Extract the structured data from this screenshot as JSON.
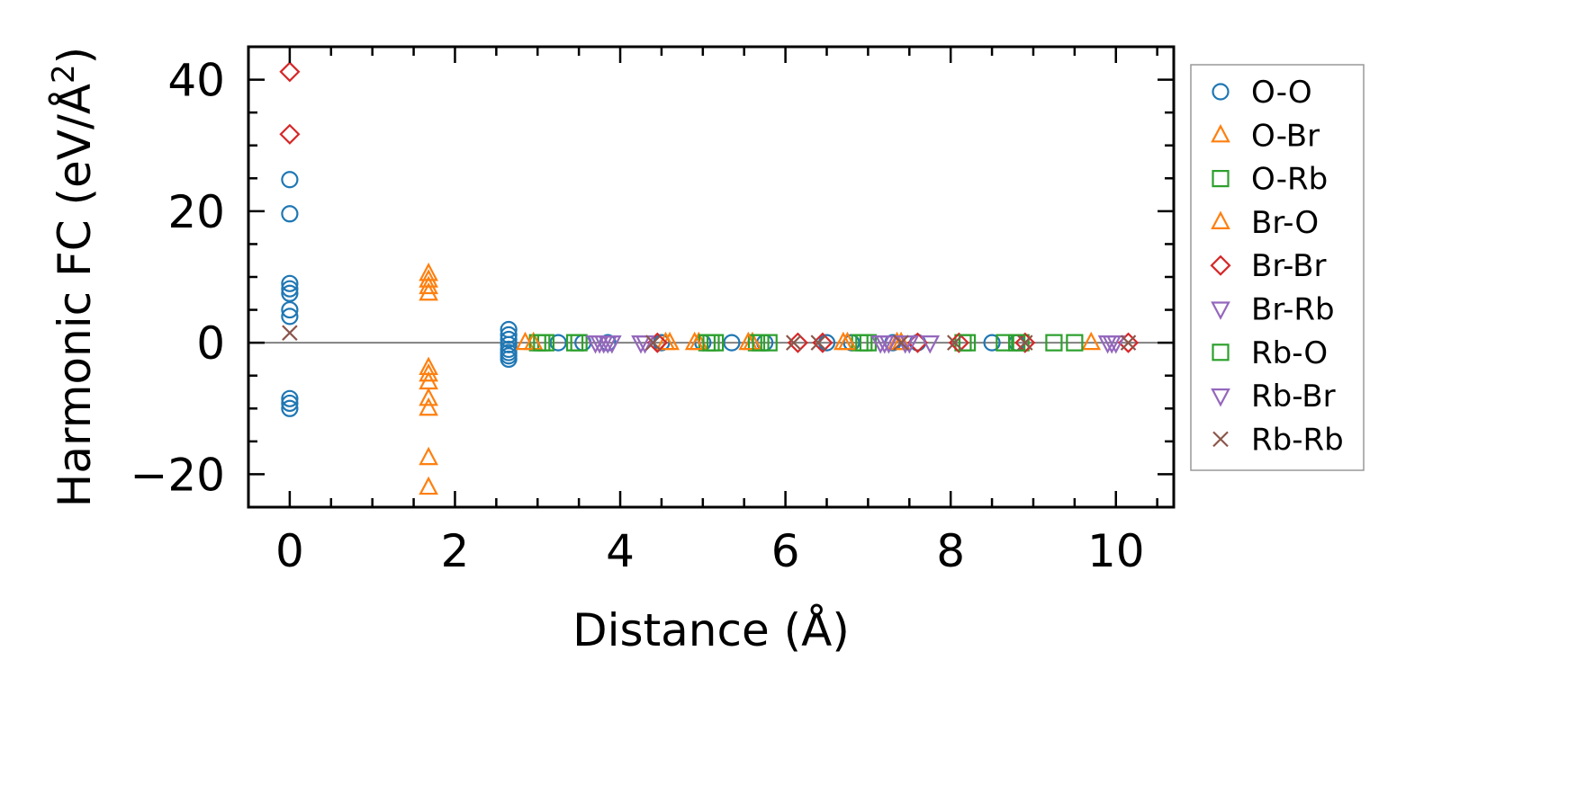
{
  "chart_data": {
    "type": "scatter",
    "title": "",
    "xlabel": "Distance (Å)",
    "ylabel_prefix": "Harmonic FC (eV/Å",
    "ylabel_sup": "2",
    "ylabel_suffix": ")",
    "xlim": [
      -0.5,
      10.7
    ],
    "ylim": [
      -25,
      45
    ],
    "xticks": [
      0,
      2,
      4,
      6,
      8,
      10
    ],
    "xtick_labels": [
      "0",
      "2",
      "4",
      "6",
      "8",
      "10"
    ],
    "yticks": [
      -20,
      0,
      20,
      40
    ],
    "ytick_labels": [
      "−20",
      "0",
      "20",
      "40"
    ],
    "zero_line": true,
    "grid": false,
    "legend_position": "outside-right",
    "series": [
      {
        "name": "O-O",
        "marker": "circle",
        "color": "#1f77b4",
        "x": [
          0,
          0,
          0,
          0,
          0,
          0,
          0,
          0,
          0,
          0,
          2.65,
          2.65,
          2.65,
          2.65,
          2.65,
          2.65,
          2.65,
          2.65,
          3.25,
          3.55,
          3.85,
          4.5,
          5.0,
          5.35,
          5.75,
          6.5,
          6.8,
          7.3,
          7.6,
          8.5,
          8.8
        ],
        "y": [
          24.8,
          19.6,
          9.0,
          8.2,
          7.5,
          5.0,
          4.0,
          -8.5,
          -9.2,
          -10.0,
          2.0,
          1.2,
          0.5,
          -0.3,
          -1.0,
          -1.5,
          -2.0,
          -2.5,
          0,
          0,
          0,
          0,
          0,
          0,
          0,
          0,
          0,
          0,
          0,
          0,
          0
        ]
      },
      {
        "name": "O-Br",
        "marker": "triangle-up",
        "color": "#ff7f0e",
        "x": [
          1.68,
          1.68,
          1.68,
          1.68,
          1.68,
          1.68,
          1.68,
          1.68,
          1.68,
          1.68,
          1.68,
          2.85,
          4.6,
          4.95,
          5.6,
          6.7,
          7.4,
          9.7
        ],
        "y": [
          10.5,
          9.5,
          8.5,
          7.5,
          -3.8,
          -4.8,
          -6.0,
          -8.5,
          -10.0,
          -17.5,
          -22.0,
          0,
          0,
          0,
          0,
          0,
          0,
          0
        ]
      },
      {
        "name": "O-Rb",
        "marker": "square",
        "color": "#2ca02c",
        "x": [
          3.0,
          3.1,
          3.5,
          5.05,
          5.15,
          5.65,
          5.8,
          6.9,
          7.0,
          8.15,
          8.65,
          8.85,
          9.25,
          9.5
        ],
        "y": [
          0,
          0,
          0,
          0,
          0,
          0,
          0,
          0,
          0,
          0,
          0,
          0,
          0,
          0
        ]
      },
      {
        "name": "Br-O",
        "marker": "triangle-up",
        "color": "#ff7f0e",
        "x": [
          2.95,
          4.55,
          4.9,
          5.55,
          6.75,
          7.35
        ],
        "y": [
          0,
          0,
          0,
          0,
          0,
          0
        ]
      },
      {
        "name": "Br-Br",
        "marker": "diamond",
        "color": "#d62728",
        "x": [
          0,
          0,
          4.45,
          6.15,
          6.45,
          7.6,
          8.1,
          8.9,
          10.15
        ],
        "y": [
          41.2,
          31.7,
          0,
          0,
          0,
          0,
          0,
          0,
          0
        ]
      },
      {
        "name": "Br-Rb",
        "marker": "triangle-down",
        "color": "#9467bd",
        "x": [
          3.7,
          3.8,
          3.9,
          4.25,
          7.2,
          7.25,
          7.5,
          7.75,
          9.9,
          10.0
        ],
        "y": [
          0,
          0,
          0,
          0,
          0,
          0,
          0,
          0,
          0,
          0
        ]
      },
      {
        "name": "Rb-O",
        "marker": "square",
        "color": "#2ca02c",
        "x": [
          3.05,
          3.45,
          5.1,
          5.7,
          6.95,
          8.2,
          8.8
        ],
        "y": [
          0,
          0,
          0,
          0,
          0,
          0,
          0
        ]
      },
      {
        "name": "Rb-Br",
        "marker": "triangle-down",
        "color": "#9467bd",
        "x": [
          3.75,
          3.85,
          4.3,
          7.15,
          7.45,
          9.95
        ],
        "y": [
          0,
          0,
          0,
          0,
          0,
          0
        ]
      },
      {
        "name": "Rb-Rb",
        "marker": "x",
        "color": "#8c564b",
        "x": [
          0,
          4.4,
          6.1,
          6.4,
          7.4,
          8.05,
          8.9,
          10.15
        ],
        "y": [
          1.5,
          0,
          0,
          0,
          0,
          0,
          0,
          0
        ]
      }
    ]
  }
}
